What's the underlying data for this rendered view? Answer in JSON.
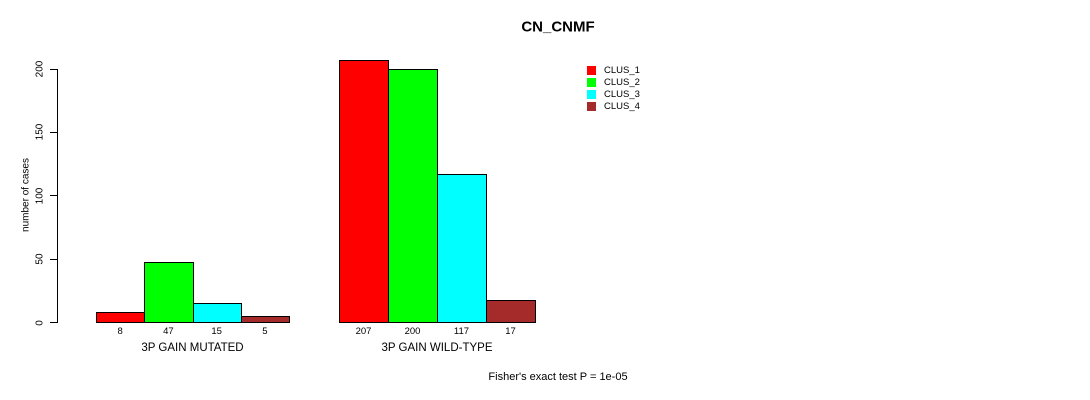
{
  "title": "CN_CNMF",
  "annotation": "Fisher's exact test P = 1e-05",
  "chart_data": {
    "type": "bar",
    "title": "CN_CNMF",
    "xlabel": "",
    "ylabel": "number of cases",
    "ylim": [
      0,
      200
    ],
    "yticks": [
      0,
      50,
      100,
      150,
      200
    ],
    "categories": [
      "3P GAIN MUTATED",
      "3P GAIN WILD-TYPE"
    ],
    "series": [
      {
        "name": "CLUS_1",
        "color": "#ff0000",
        "values": [
          8,
          207
        ]
      },
      {
        "name": "CLUS_2",
        "color": "#00ff00",
        "values": [
          47,
          200
        ]
      },
      {
        "name": "CLUS_3",
        "color": "#00ffff",
        "values": [
          15,
          117
        ]
      },
      {
        "name": "CLUS_4",
        "color": "#a52a2a",
        "values": [
          5,
          17
        ]
      }
    ],
    "bar_value_labels": [
      [
        "8",
        "47",
        "15",
        "5"
      ],
      [
        "207",
        "200",
        "117",
        "17"
      ]
    ],
    "legend_entries": [
      "CLUS_1",
      "CLUS_2",
      "CLUS_3",
      "CLUS_4"
    ],
    "legend_position": "top-right",
    "grid": false,
    "annotation": "Fisher's exact test P = 1e-05",
    "background_color": "#ffffff",
    "axis_color": "#000000"
  }
}
